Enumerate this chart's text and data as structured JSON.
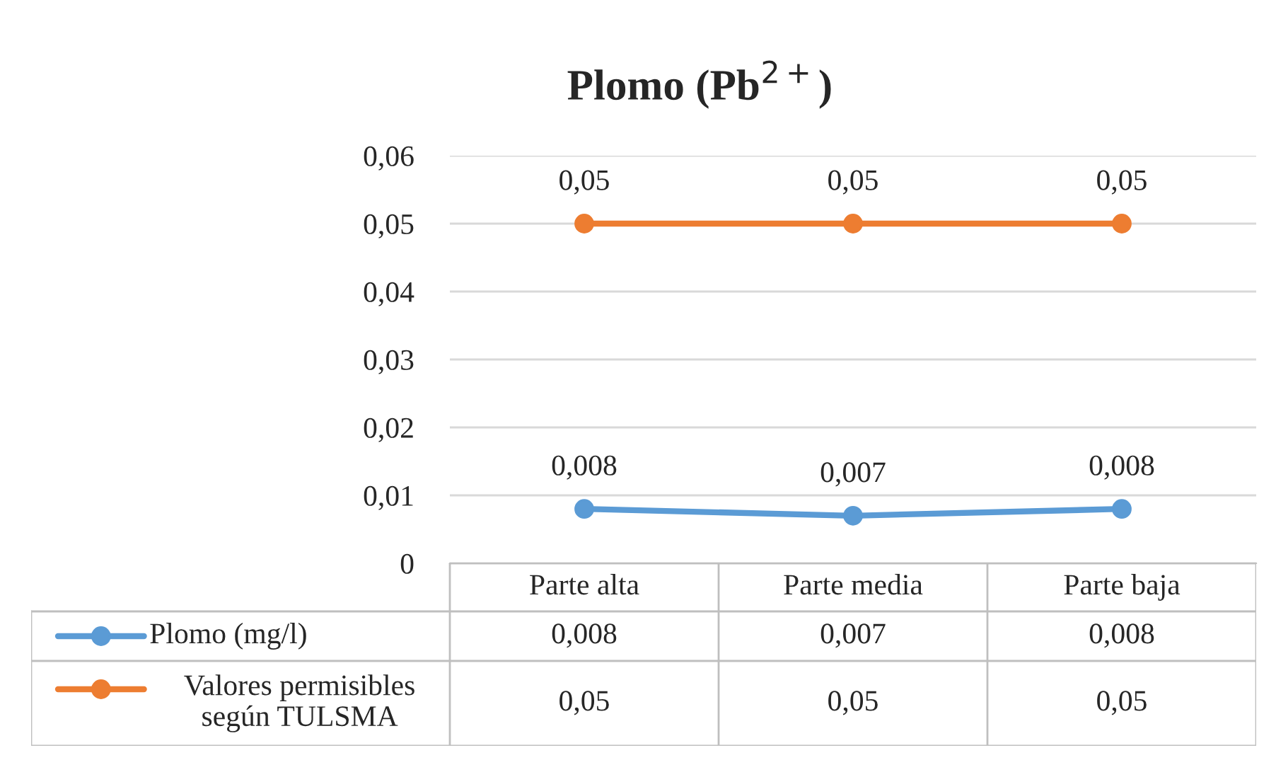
{
  "chart_data": {
    "type": "line",
    "title": "Plomo (Pb$^{2+}$)",
    "categories": [
      "Parte alta",
      "Parte media",
      "Parte baja"
    ],
    "series": [
      {
        "name": "Plomo (mg/l)",
        "color": "#5b9bd5",
        "values": [
          0.008,
          0.007,
          0.008
        ],
        "value_labels": [
          "0,008",
          "0,007",
          "0,008"
        ]
      },
      {
        "name": "Valores permisibles\nsegún TULSMA",
        "color": "#ed7d31",
        "values": [
          0.05,
          0.05,
          0.05
        ],
        "value_labels": [
          "0,05",
          "0,05",
          "0,05"
        ]
      }
    ],
    "ylim": [
      0,
      0.06
    ],
    "yticks": [
      {
        "value": 0,
        "label": "0"
      },
      {
        "value": 0.01,
        "label": "0,01"
      },
      {
        "value": 0.02,
        "label": "0,02"
      },
      {
        "value": 0.03,
        "label": "0,03"
      },
      {
        "value": 0.04,
        "label": "0,04"
      },
      {
        "value": 0.05,
        "label": "0,05"
      },
      {
        "value": 0.06,
        "label": "0,06"
      }
    ],
    "grid": "y",
    "legend": "bottom",
    "marker": "circle",
    "line_style": "solid"
  }
}
